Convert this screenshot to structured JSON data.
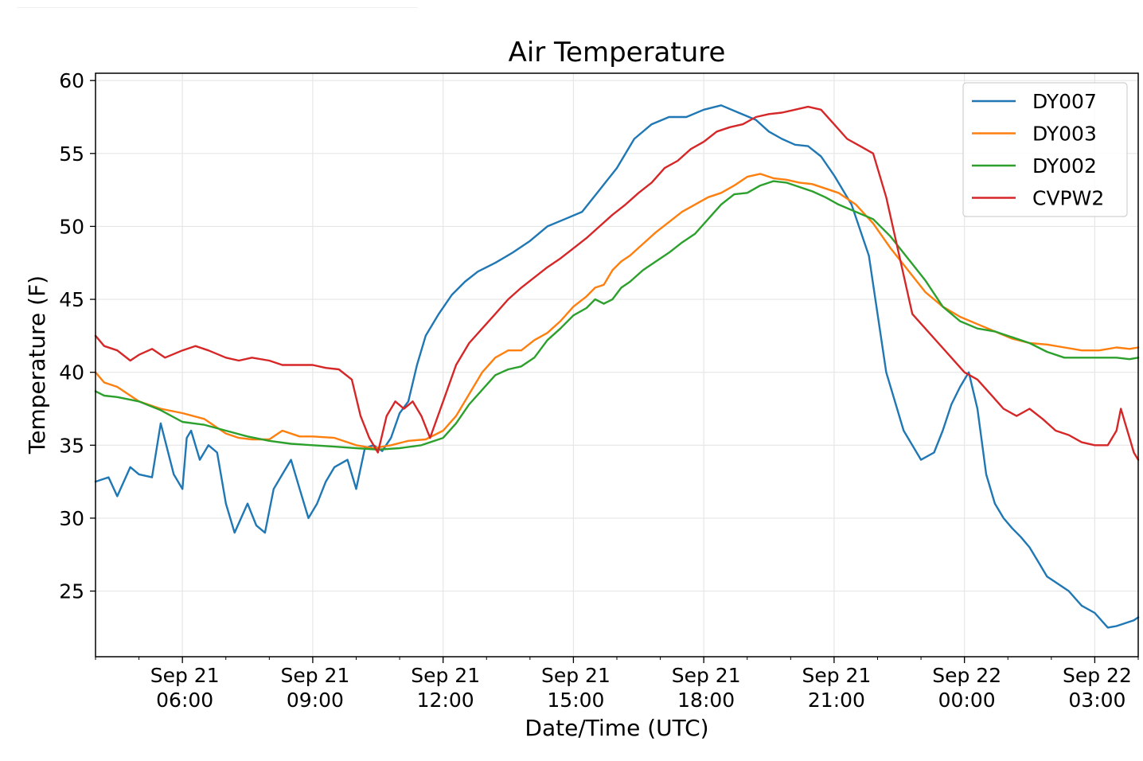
{
  "chart_data": {
    "type": "line",
    "title": "Air Temperature",
    "xlabel": "Date/Time (UTC)",
    "ylabel": "Temperature (F)",
    "xlim": [
      4.0,
      28.0
    ],
    "ylim": [
      20.5,
      60.5
    ],
    "grid": true,
    "legend_position": "top-right",
    "x_units": "hours since 2019-09-21 00:00 UTC",
    "x_ticks": [
      {
        "x": 6,
        "line1": "Sep 21",
        "line2": "06:00"
      },
      {
        "x": 9,
        "line1": "Sep 21",
        "line2": "09:00"
      },
      {
        "x": 12,
        "line1": "Sep 21",
        "line2": "12:00"
      },
      {
        "x": 15,
        "line1": "Sep 21",
        "line2": "15:00"
      },
      {
        "x": 18,
        "line1": "Sep 21",
        "line2": "18:00"
      },
      {
        "x": 21,
        "line1": "Sep 21",
        "line2": "21:00"
      },
      {
        "x": 24,
        "line1": "Sep 22",
        "line2": "00:00"
      },
      {
        "x": 27,
        "line1": "Sep 22",
        "line2": "03:00"
      }
    ],
    "y_ticks": [
      25,
      30,
      35,
      40,
      45,
      50,
      55,
      60
    ],
    "series": [
      {
        "name": "DY007",
        "color": "#1f77b4",
        "x": [
          4.0,
          4.3,
          4.5,
          4.8,
          5.0,
          5.3,
          5.5,
          5.8,
          6.0,
          6.1,
          6.2,
          6.4,
          6.6,
          6.8,
          7.0,
          7.2,
          7.5,
          7.7,
          7.9,
          8.1,
          8.3,
          8.5,
          8.7,
          8.9,
          9.1,
          9.3,
          9.5,
          9.8,
          10.0,
          10.2,
          10.4,
          10.6,
          10.8,
          11.0,
          11.2,
          11.4,
          11.6,
          11.9,
          12.2,
          12.5,
          12.8,
          13.2,
          13.6,
          14.0,
          14.4,
          14.8,
          15.2,
          15.6,
          16.0,
          16.4,
          16.8,
          17.2,
          17.6,
          18.0,
          18.4,
          18.8,
          19.2,
          19.5,
          19.8,
          20.1,
          20.4,
          20.7,
          21.0,
          21.4,
          21.8,
          22.2,
          22.6,
          23.0,
          23.3,
          23.5,
          23.7,
          23.9,
          24.1,
          24.3,
          24.5,
          24.7,
          24.9,
          25.1,
          25.3,
          25.5,
          25.7,
          25.9,
          26.1,
          26.4,
          26.7,
          27.0,
          27.3,
          27.5,
          27.7,
          27.9,
          28.0
        ],
        "y": [
          32.5,
          32.8,
          31.5,
          33.5,
          33.0,
          32.8,
          36.5,
          33.0,
          32.0,
          35.5,
          36.0,
          34.0,
          35.0,
          34.5,
          31.0,
          29.0,
          31.0,
          29.5,
          29.0,
          32.0,
          33.0,
          34.0,
          32.0,
          30.0,
          31.0,
          32.5,
          33.5,
          34.0,
          32.0,
          34.8,
          35.0,
          34.6,
          35.5,
          37.2,
          38.0,
          40.5,
          42.5,
          44.0,
          45.3,
          46.2,
          46.9,
          47.5,
          48.2,
          49.0,
          50.0,
          50.5,
          51.0,
          52.5,
          54.0,
          56.0,
          57.0,
          57.5,
          57.5,
          58.0,
          58.3,
          57.8,
          57.3,
          56.5,
          56.0,
          55.6,
          55.5,
          54.8,
          53.5,
          51.5,
          48.0,
          40.0,
          36.0,
          34.0,
          34.5,
          36.0,
          37.8,
          39.0,
          40.0,
          37.5,
          33.0,
          31.0,
          30.0,
          29.3,
          28.7,
          28.0,
          27.0,
          26.0,
          25.6,
          25.0,
          24.0,
          23.5,
          22.5,
          22.6,
          22.8,
          23.0,
          23.2
        ]
      },
      {
        "name": "DY003",
        "color": "#ff7f0e",
        "x": [
          4.0,
          4.2,
          4.5,
          5.0,
          5.5,
          6.0,
          6.5,
          7.0,
          7.3,
          7.6,
          8.0,
          8.3,
          8.7,
          9.0,
          9.5,
          10.0,
          10.4,
          10.8,
          11.2,
          11.6,
          12.0,
          12.3,
          12.6,
          12.9,
          13.2,
          13.5,
          13.8,
          14.1,
          14.4,
          14.7,
          15.0,
          15.3,
          15.5,
          15.7,
          15.9,
          16.1,
          16.3,
          16.6,
          16.9,
          17.2,
          17.5,
          17.8,
          18.1,
          18.4,
          18.7,
          19.0,
          19.3,
          19.6,
          19.9,
          20.2,
          20.5,
          20.8,
          21.1,
          21.5,
          21.9,
          22.3,
          22.7,
          23.1,
          23.5,
          23.9,
          24.3,
          24.7,
          25.1,
          25.5,
          25.9,
          26.3,
          26.7,
          27.1,
          27.5,
          27.8,
          28.0
        ],
        "y": [
          40.0,
          39.3,
          39.0,
          38.0,
          37.5,
          37.2,
          36.8,
          35.8,
          35.5,
          35.4,
          35.4,
          36.0,
          35.6,
          35.6,
          35.5,
          35.0,
          34.8,
          35.0,
          35.3,
          35.4,
          36.0,
          37.0,
          38.5,
          40.0,
          41.0,
          41.5,
          41.5,
          42.2,
          42.7,
          43.5,
          44.5,
          45.2,
          45.8,
          46.0,
          47.0,
          47.6,
          48.0,
          48.8,
          49.6,
          50.3,
          51.0,
          51.5,
          52.0,
          52.3,
          52.8,
          53.4,
          53.6,
          53.3,
          53.2,
          53.0,
          52.9,
          52.6,
          52.3,
          51.5,
          50.2,
          48.5,
          47.0,
          45.5,
          44.5,
          43.8,
          43.3,
          42.8,
          42.3,
          42.0,
          41.9,
          41.7,
          41.5,
          41.5,
          41.7,
          41.6,
          41.7
        ]
      },
      {
        "name": "DY002",
        "color": "#2ca02c",
        "x": [
          4.0,
          4.2,
          4.5,
          5.0,
          5.5,
          6.0,
          6.5,
          7.0,
          7.5,
          8.0,
          8.5,
          9.0,
          9.5,
          10.0,
          10.5,
          11.0,
          11.5,
          12.0,
          12.3,
          12.6,
          12.9,
          13.2,
          13.5,
          13.8,
          14.1,
          14.4,
          14.7,
          15.0,
          15.3,
          15.5,
          15.7,
          15.9,
          16.1,
          16.3,
          16.6,
          16.9,
          17.2,
          17.5,
          17.8,
          18.1,
          18.4,
          18.7,
          19.0,
          19.3,
          19.6,
          19.9,
          20.2,
          20.5,
          20.8,
          21.1,
          21.5,
          21.9,
          22.3,
          22.7,
          23.1,
          23.5,
          23.9,
          24.3,
          24.7,
          25.1,
          25.5,
          25.9,
          26.3,
          26.7,
          27.1,
          27.5,
          27.8,
          28.0
        ],
        "y": [
          38.7,
          38.4,
          38.3,
          38.0,
          37.4,
          36.6,
          36.4,
          36.0,
          35.6,
          35.3,
          35.1,
          35.0,
          34.9,
          34.8,
          34.7,
          34.8,
          35.0,
          35.5,
          36.5,
          37.8,
          38.8,
          39.8,
          40.2,
          40.4,
          41.0,
          42.2,
          43.0,
          43.9,
          44.4,
          45.0,
          44.7,
          45.0,
          45.8,
          46.2,
          47.0,
          47.6,
          48.2,
          48.9,
          49.5,
          50.5,
          51.5,
          52.2,
          52.3,
          52.8,
          53.1,
          53.0,
          52.7,
          52.4,
          52.0,
          51.5,
          51.0,
          50.5,
          49.3,
          47.8,
          46.3,
          44.5,
          43.5,
          43.0,
          42.8,
          42.4,
          42.0,
          41.4,
          41.0,
          41.0,
          41.0,
          41.0,
          40.9,
          41.0
        ]
      },
      {
        "name": "CVPW2",
        "color": "#d62728",
        "x": [
          4.0,
          4.2,
          4.5,
          4.8,
          5.0,
          5.3,
          5.6,
          6.0,
          6.3,
          6.6,
          7.0,
          7.3,
          7.6,
          8.0,
          8.3,
          8.6,
          9.0,
          9.3,
          9.6,
          9.9,
          10.1,
          10.3,
          10.5,
          10.7,
          10.9,
          11.1,
          11.3,
          11.5,
          11.7,
          12.0,
          12.3,
          12.6,
          12.9,
          13.2,
          13.5,
          13.8,
          14.1,
          14.4,
          14.7,
          15.0,
          15.3,
          15.6,
          15.9,
          16.2,
          16.5,
          16.8,
          17.1,
          17.4,
          17.7,
          18.0,
          18.3,
          18.6,
          18.9,
          19.2,
          19.5,
          19.8,
          20.1,
          20.4,
          20.7,
          21.0,
          21.3,
          21.6,
          21.9,
          22.2,
          22.5,
          22.8,
          23.1,
          23.4,
          23.7,
          24.0,
          24.3,
          24.6,
          24.9,
          25.2,
          25.5,
          25.8,
          26.1,
          26.4,
          26.7,
          27.0,
          27.3,
          27.5,
          27.6,
          27.7,
          27.8,
          27.9,
          28.0
        ],
        "y": [
          42.5,
          41.8,
          41.5,
          40.8,
          41.2,
          41.6,
          41.0,
          41.5,
          41.8,
          41.5,
          41.0,
          40.8,
          41.0,
          40.8,
          40.5,
          40.5,
          40.5,
          40.3,
          40.2,
          39.5,
          37.0,
          35.5,
          34.5,
          37.0,
          38.0,
          37.5,
          38.0,
          37.0,
          35.5,
          38.0,
          40.5,
          42.0,
          43.0,
          44.0,
          45.0,
          45.8,
          46.5,
          47.2,
          47.8,
          48.5,
          49.2,
          50.0,
          50.8,
          51.5,
          52.3,
          53.0,
          54.0,
          54.5,
          55.3,
          55.8,
          56.5,
          56.8,
          57.0,
          57.5,
          57.7,
          57.8,
          58.0,
          58.2,
          58.0,
          57.0,
          56.0,
          55.5,
          55.0,
          52.0,
          48.0,
          44.0,
          43.0,
          42.0,
          41.0,
          40.0,
          39.5,
          38.5,
          37.5,
          37.0,
          37.5,
          36.8,
          36.0,
          35.7,
          35.2,
          35.0,
          35.0,
          36.0,
          37.5,
          36.5,
          35.5,
          34.5,
          34.0
        ]
      }
    ]
  }
}
